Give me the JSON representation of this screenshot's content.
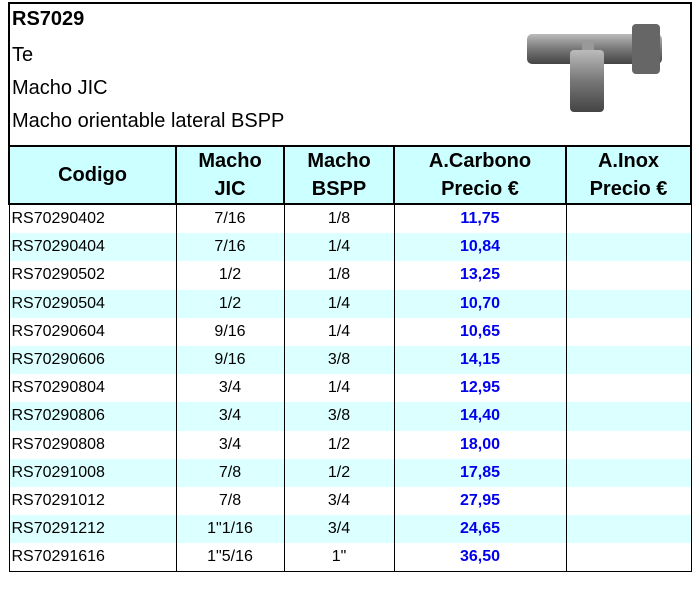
{
  "header": {
    "title": "RS7029",
    "lines": [
      "Te",
      "Macho  JIC",
      "Macho orientable lateral BSPP"
    ]
  },
  "table": {
    "columns": [
      [
        "Codigo"
      ],
      [
        "Macho",
        "JIC"
      ],
      [
        "Macho",
        "BSPP"
      ],
      [
        "A.Carbono",
        "Precio €"
      ],
      [
        "A.Inox",
        "Precio €"
      ]
    ],
    "rows": [
      [
        "RS70290402",
        "7/16",
        "1/8",
        "11,75"
      ],
      [
        "RS70290404",
        "7/16",
        "1/4",
        "10,84"
      ],
      [
        "RS70290502",
        "1/2",
        "1/8",
        "13,25"
      ],
      [
        "RS70290504",
        "1/2",
        "1/4",
        "10,70"
      ],
      [
        "RS70290604",
        "9/16",
        "1/4",
        "10,65"
      ],
      [
        "RS70290606",
        "9/16",
        "3/8",
        "14,15"
      ],
      [
        "RS70290804",
        "3/4",
        "1/4",
        "12,95"
      ],
      [
        "RS70290806",
        "3/4",
        "3/8",
        "14,40"
      ],
      [
        "RS70290808",
        "3/4",
        "1/2",
        "18,00"
      ],
      [
        "RS70291008",
        "7/8",
        "1/2",
        "17,85"
      ],
      [
        "RS70291012",
        "7/8",
        "3/4",
        "27,95"
      ],
      [
        "RS70291212",
        "1\"1/16",
        "3/4",
        "24,65"
      ],
      [
        "RS70291616",
        "1\"5/16",
        "1\"",
        "36,50"
      ]
    ]
  }
}
